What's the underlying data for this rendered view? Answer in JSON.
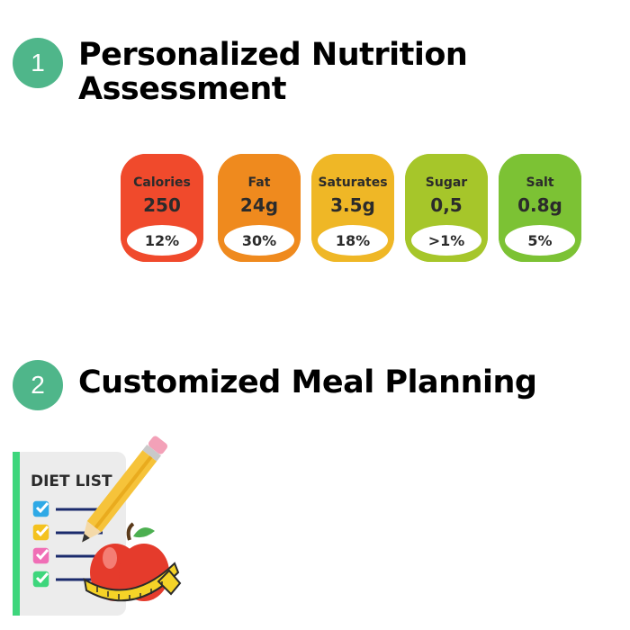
{
  "section1": {
    "number": "1",
    "title": "Personalized Nutrition Assessment"
  },
  "nutrition_labels": [
    {
      "name": "Calories",
      "amount": "250",
      "percent": "12%",
      "color": "#f04a2c"
    },
    {
      "name": "Fat",
      "amount": "24g",
      "percent": "30%",
      "color": "#ef8a1e"
    },
    {
      "name": "Saturates",
      "amount": "3.5g",
      "percent": "18%",
      "color": "#efb726"
    },
    {
      "name": "Sugar",
      "amount": "0,5",
      "percent": ">1%",
      "color": "#a6c62a"
    },
    {
      "name": "Salt",
      "amount": "0.8g",
      "percent": "5%",
      "color": "#7cc234"
    }
  ],
  "section2": {
    "number": "2",
    "title": "Customized Meal Planning"
  },
  "illustration": {
    "title": "DIET LIST",
    "accent": "#3ed67c",
    "checkbox_colors": [
      "#2fa9e6",
      "#f4c21f",
      "#f06fb6",
      "#3ed67c"
    ]
  }
}
